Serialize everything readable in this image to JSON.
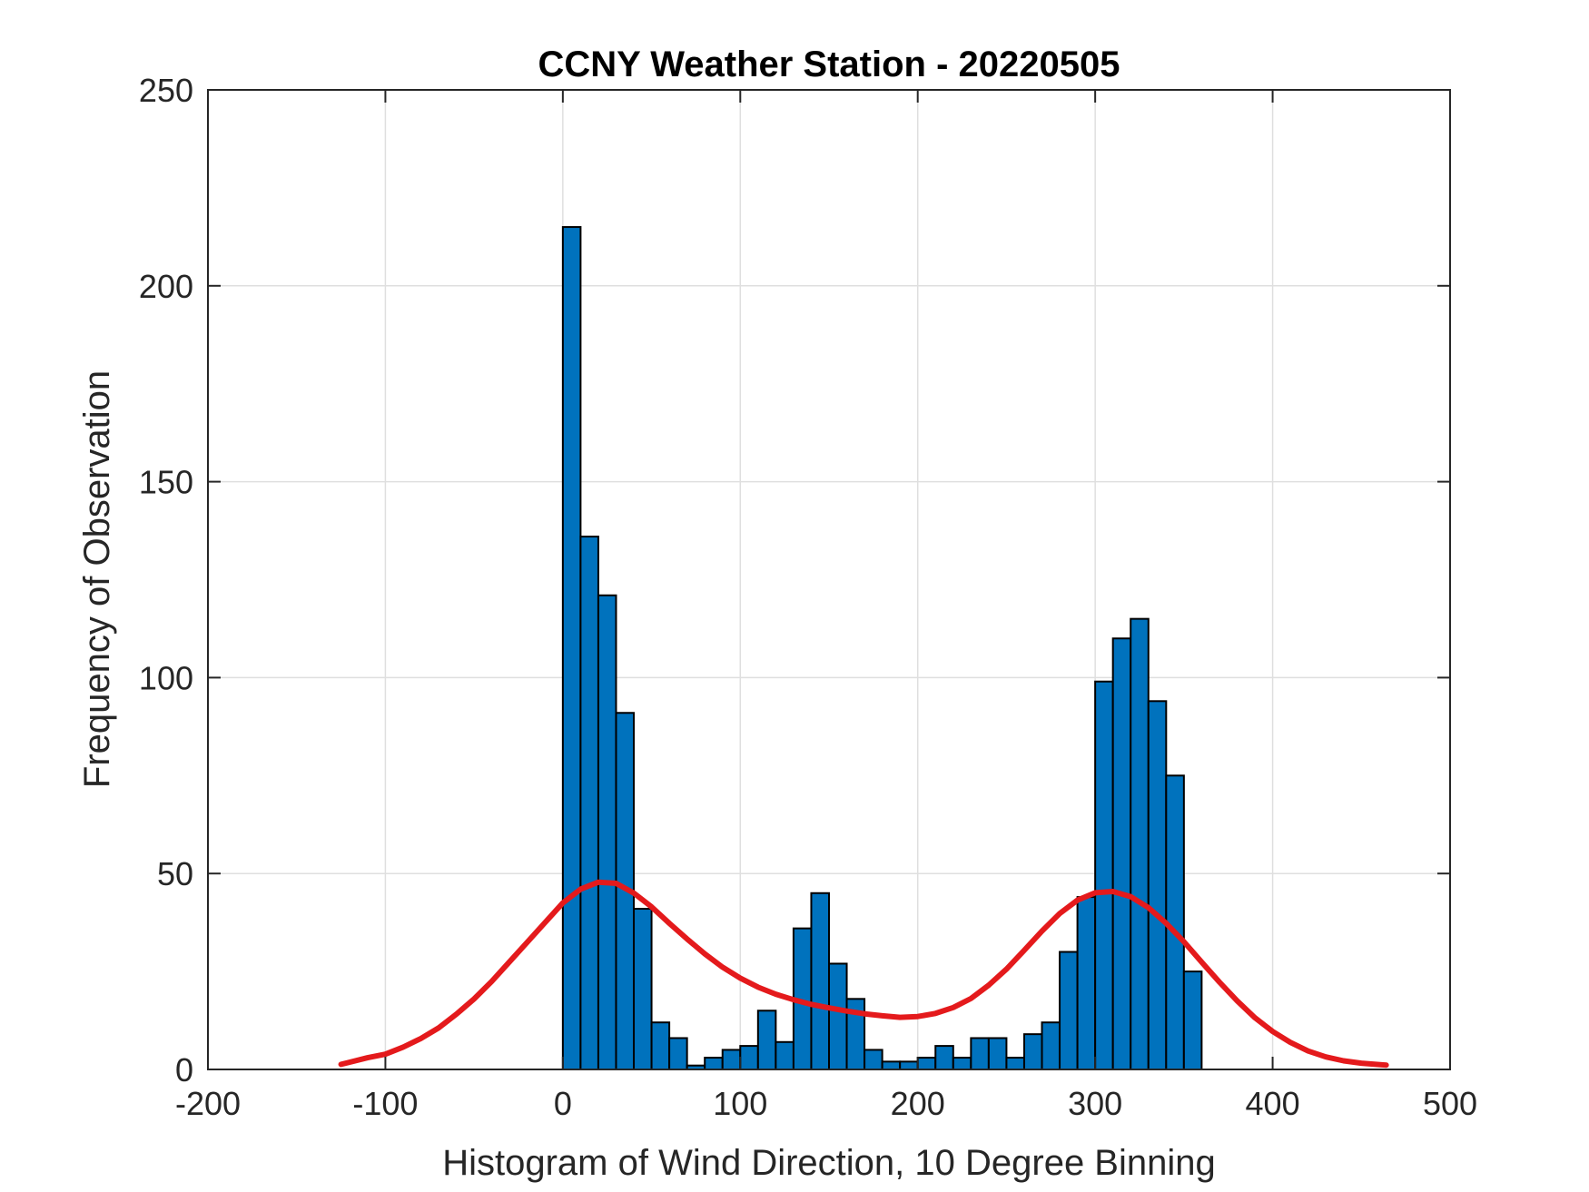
{
  "chart_data": {
    "type": "bar",
    "title": "CCNY Weather Station - 20220505",
    "xlabel": "Histogram of Wind Direction, 10 Degree Binning",
    "ylabel": "Frequency of Observation",
    "xlim": [
      -200,
      500
    ],
    "ylim": [
      0,
      250
    ],
    "x_ticks": [
      -200,
      -100,
      0,
      100,
      200,
      300,
      400,
      500
    ],
    "y_ticks": [
      0,
      50,
      100,
      150,
      200,
      250
    ],
    "grid": true,
    "bin_width": 10,
    "bins": [
      {
        "x0": 0,
        "value": 215
      },
      {
        "x0": 10,
        "value": 136
      },
      {
        "x0": 20,
        "value": 121
      },
      {
        "x0": 30,
        "value": 91
      },
      {
        "x0": 40,
        "value": 41
      },
      {
        "x0": 50,
        "value": 12
      },
      {
        "x0": 60,
        "value": 8
      },
      {
        "x0": 70,
        "value": 1
      },
      {
        "x0": 80,
        "value": 3
      },
      {
        "x0": 90,
        "value": 5
      },
      {
        "x0": 100,
        "value": 6
      },
      {
        "x0": 110,
        "value": 15
      },
      {
        "x0": 120,
        "value": 7
      },
      {
        "x0": 130,
        "value": 36
      },
      {
        "x0": 140,
        "value": 45
      },
      {
        "x0": 150,
        "value": 27
      },
      {
        "x0": 160,
        "value": 18
      },
      {
        "x0": 170,
        "value": 5
      },
      {
        "x0": 180,
        "value": 2
      },
      {
        "x0": 190,
        "value": 2
      },
      {
        "x0": 200,
        "value": 3
      },
      {
        "x0": 210,
        "value": 6
      },
      {
        "x0": 220,
        "value": 3
      },
      {
        "x0": 230,
        "value": 8
      },
      {
        "x0": 240,
        "value": 8
      },
      {
        "x0": 250,
        "value": 3
      },
      {
        "x0": 260,
        "value": 9
      },
      {
        "x0": 270,
        "value": 12
      },
      {
        "x0": 280,
        "value": 30
      },
      {
        "x0": 290,
        "value": 44
      },
      {
        "x0": 300,
        "value": 99
      },
      {
        "x0": 310,
        "value": 110
      },
      {
        "x0": 320,
        "value": 115
      },
      {
        "x0": 330,
        "value": 94
      },
      {
        "x0": 340,
        "value": 75
      },
      {
        "x0": 350,
        "value": 25
      }
    ],
    "fit_curve": {
      "x": [
        -125,
        -110,
        -100,
        -90,
        -80,
        -70,
        -60,
        -50,
        -40,
        -30,
        -20,
        -10,
        0,
        10,
        20,
        30,
        40,
        50,
        60,
        70,
        80,
        90,
        100,
        110,
        120,
        130,
        140,
        150,
        160,
        170,
        180,
        190,
        200,
        210,
        220,
        230,
        240,
        250,
        260,
        270,
        280,
        290,
        300,
        310,
        320,
        330,
        340,
        350,
        360,
        370,
        380,
        390,
        400,
        410,
        420,
        430,
        440,
        450,
        464
      ],
      "y": [
        1.3,
        3.0,
        3.9,
        5.7,
        7.9,
        10.6,
        14.1,
        18.0,
        22.5,
        27.5,
        32.5,
        37.5,
        42.5,
        46.0,
        47.8,
        47.5,
        45.0,
        41.5,
        37.3,
        33.3,
        29.5,
        26.1,
        23.3,
        21.0,
        19.2,
        17.8,
        16.6,
        15.7,
        14.9,
        14.2,
        13.7,
        13.3,
        13.5,
        14.3,
        15.8,
        18.1,
        21.5,
        25.6,
        30.4,
        35.3,
        39.8,
        43.2,
        45.1,
        45.4,
        44.1,
        41.3,
        37.3,
        32.6,
        27.4,
        22.3,
        17.5,
        13.2,
        9.7,
        6.9,
        4.7,
        3.2,
        2.2,
        1.6,
        1.1
      ]
    },
    "colors": {
      "bar_fill": "#0072BD",
      "bar_edge": "#000000",
      "curve": "#E41A1C",
      "grid": "#DFDFDF",
      "axis": "#262626"
    }
  }
}
